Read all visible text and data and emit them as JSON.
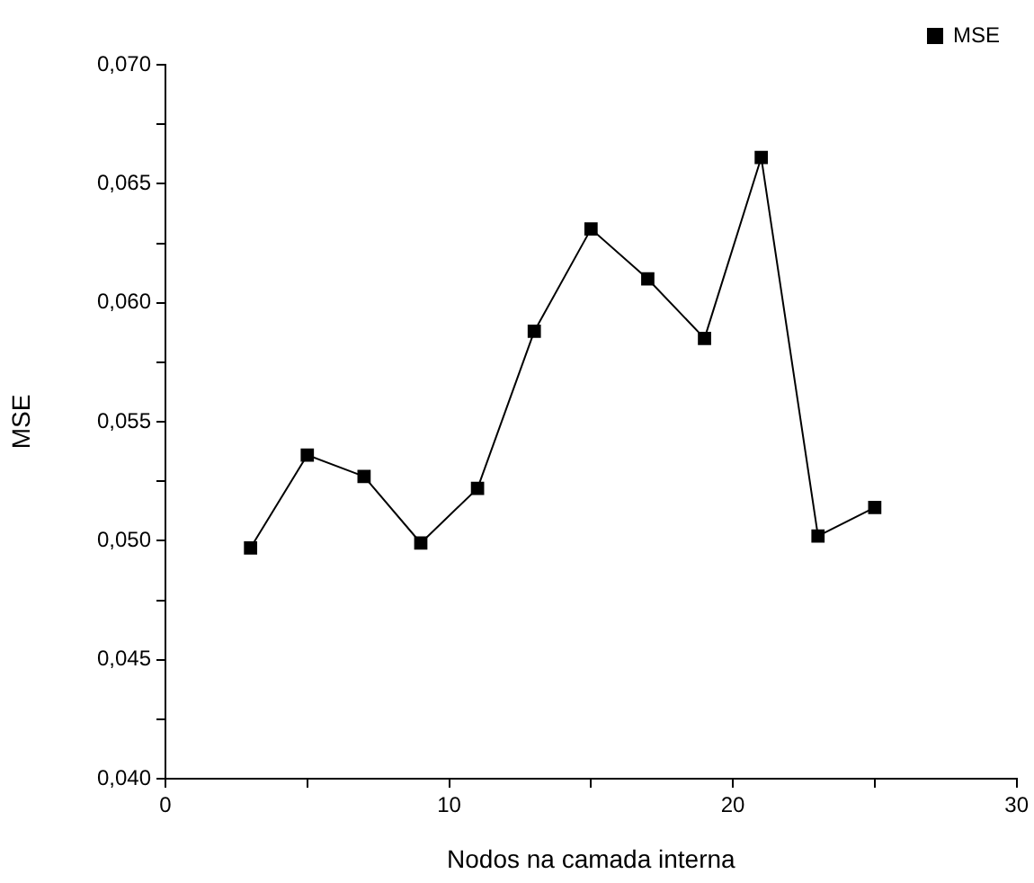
{
  "chart_data": {
    "type": "line",
    "xlabel": "Nodos na camada interna",
    "ylabel": "MSE",
    "x": [
      3,
      5,
      7,
      9,
      11,
      13,
      15,
      17,
      19,
      21,
      23,
      25
    ],
    "series": [
      {
        "name": "MSE",
        "color": "#000000",
        "values": [
          0.0497,
          0.0536,
          0.0527,
          0.0499,
          0.0522,
          0.0588,
          0.0631,
          0.061,
          0.0585,
          0.0661,
          0.0502,
          0.0514
        ]
      }
    ],
    "xlim": [
      0,
      30
    ],
    "xticks": [
      0,
      {
        "value": 5,
        "label": null
      },
      10,
      {
        "value": 15,
        "label": null
      },
      20,
      {
        "value": 25,
        "label": null
      },
      30
    ],
    "ylim": [
      0.04,
      0.07
    ],
    "yticks": [
      {
        "value": 0.04,
        "label": "0,040"
      },
      {
        "value": 0.0425,
        "label": null
      },
      {
        "value": 0.045,
        "label": "0,045"
      },
      {
        "value": 0.0475,
        "label": null
      },
      {
        "value": 0.05,
        "label": "0,050"
      },
      {
        "value": 0.0525,
        "label": null
      },
      {
        "value": 0.055,
        "label": "0,055"
      },
      {
        "value": 0.0575,
        "label": null
      },
      {
        "value": 0.06,
        "label": "0,060"
      },
      {
        "value": 0.0625,
        "label": null
      },
      {
        "value": 0.065,
        "label": "0,065"
      },
      {
        "value": 0.0675,
        "label": null
      },
      {
        "value": 0.07,
        "label": "0,070"
      }
    ],
    "grid": false,
    "legend": "top right",
    "marker": "square",
    "line_style": "solid"
  }
}
